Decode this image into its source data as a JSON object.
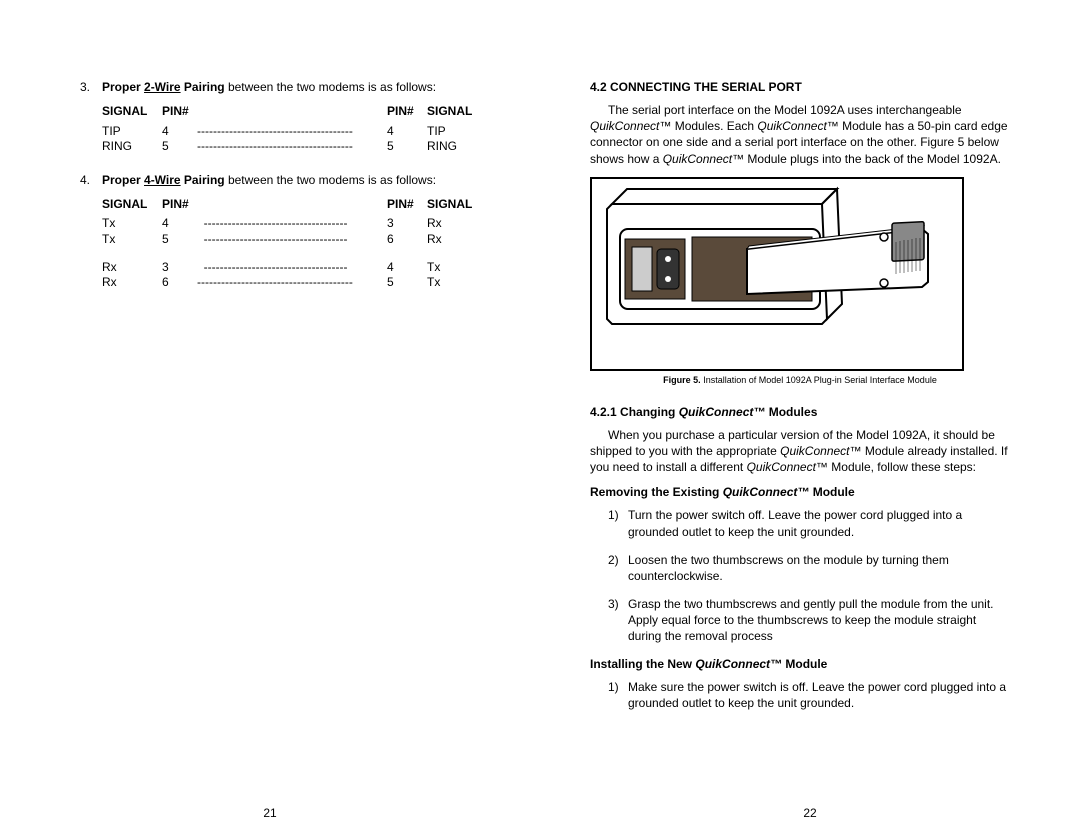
{
  "left": {
    "item3_prefix": "3.",
    "item3_b1": "Proper ",
    "item3_u": "2-Wire",
    "item3_b2": " Pairing",
    "item3_rest": " between the two modems is as follows:",
    "table2w": {
      "h1": "SIGNAL",
      "h2": "PIN#",
      "h3": "PIN#",
      "h4": "SIGNAL",
      "rows": [
        {
          "s1": "TIP",
          "p1": "4",
          "dash": "---------------------------------------",
          "p2": "4",
          "s2": "TIP"
        },
        {
          "s1": "RING",
          "p1": "5",
          "dash": "---------------------------------------",
          "p2": "5",
          "s2": "RING"
        }
      ]
    },
    "item4_prefix": "4.",
    "item4_b1": "Proper ",
    "item4_u": "4-Wire",
    "item4_b2": " Pairing",
    "item4_rest": " between the two modems is as follows:",
    "table4w": {
      "h1": "SIGNAL",
      "h2": "PIN#",
      "h3": "PIN#",
      "h4": "SIGNAL",
      "rowsA": [
        {
          "s1": "Tx",
          "p1": "4",
          "dash": "  ------------------------------------",
          "p2": "3",
          "s2": "Rx"
        },
        {
          "s1": "Tx",
          "p1": "5",
          "dash": "  ------------------------------------",
          "p2": "6",
          "s2": "Rx"
        }
      ],
      "rowsB": [
        {
          "s1": "Rx",
          "p1": "3",
          "dash": "  ------------------------------------",
          "p2": "4",
          "s2": "Tx"
        },
        {
          "s1": "Rx",
          "p1": "6",
          "dash": "--------------------------------------- ",
          "p2": "5",
          "s2": "Tx"
        }
      ]
    },
    "pagenum": "21"
  },
  "right": {
    "sec42": "4.2  CONNECTING THE SERIAL PORT",
    "para1_a": "The serial port interface on the Model 1092A uses interchangeable ",
    "para1_i1": "QuikConnect™",
    "para1_b": " Modules.   Each ",
    "para1_i2": "QuikConnect™",
    "para1_c": " Module has a 50-pin card edge connector on one side and a serial port interface on the other.  Figure 5  below shows how a ",
    "para1_i3": "QuikConnect™",
    "para1_d": " Module plugs into the back of the Model 1092A.",
    "fig_caption_b": "Figure 5.",
    "fig_caption_r": " Installation of Model 1092A Plug-in Serial Interface Module",
    "sec421_a": "4.2.1   Changing ",
    "sec421_i": "QuikConnect™",
    "sec421_b": " Modules",
    "para2_a": "When you purchase a particular version of the Model 1092A, it should be shipped to you with the appropriate ",
    "para2_i1": "QuikConnect™ ",
    "para2_b": " Module already installed.  If you need to install a different ",
    "para2_i2": "QuikConnect™",
    "para2_c": " Module, follow these steps:",
    "rem_title_a": "Removing the Existing ",
    "rem_title_i": "QuikConnect™",
    "rem_title_b": " Module",
    "rem_steps": [
      {
        "n": "1)",
        "t": "Turn the power switch off.  Leave the power cord plugged into a grounded outlet to keep the unit grounded."
      },
      {
        "n": "2)",
        "t": "Loosen the two thumbscrews on the module by turning them counterclockwise."
      },
      {
        "n": "3)",
        "t": "Grasp the two thumbscrews and gently pull the module from the unit.  Apply equal force to the thumbscrews to keep the module straight during the removal process"
      }
    ],
    "inst_title_a": "Installing the New ",
    "inst_title_i": "QuikConnect™",
    "inst_title_b": " Module",
    "inst_steps": [
      {
        "n": "1)",
        "t": "Make sure the power switch is off.  Leave the power cord plugged into a grounded outlet to keep the unit grounded."
      }
    ],
    "pagenum": "22"
  }
}
